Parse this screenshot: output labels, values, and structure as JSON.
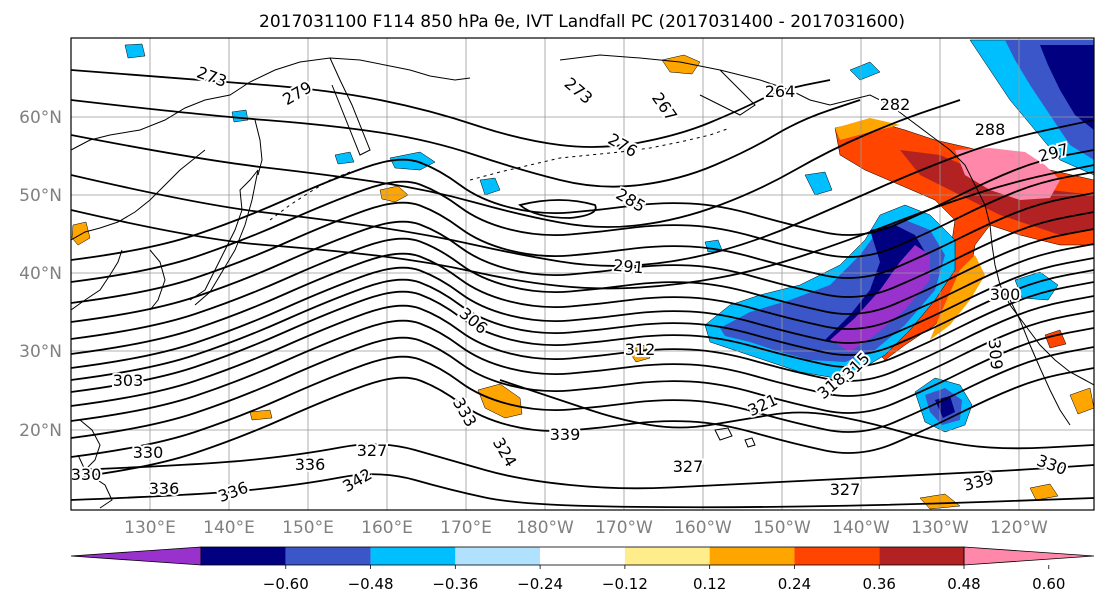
{
  "title": "2017031100 F114 850 hPa θe, IVT Landfall PC (2017031400 - 2017031600)",
  "lat_labels": [
    "60°N",
    "50°N",
    "40°N",
    "30°N",
    "20°N"
  ],
  "lon_labels": [
    "130°E",
    "140°E",
    "150°E",
    "160°E",
    "170°E",
    "180°W",
    "170°W",
    "160°W",
    "150°W",
    "140°W",
    "130°W",
    "120°W"
  ],
  "colorbar": {
    "ticks": [
      "−0.60",
      "−0.48",
      "−0.36",
      "−0.24",
      "−0.12",
      "0.12",
      "0.24",
      "0.36",
      "0.48",
      "0.60"
    ],
    "colors": [
      "#9932CC",
      "#000080",
      "#3A56C8",
      "#00BFFF",
      "#B0E2FF",
      "#FFFFFF",
      "#FFEC8B",
      "#FFA500",
      "#FF4500",
      "#B22222",
      "#FF88AA"
    ]
  },
  "contour_labels": [
    "273",
    "279",
    "273",
    "267",
    "264",
    "282",
    "288",
    "297",
    "276",
    "285",
    "291",
    "306",
    "312",
    "303",
    "327",
    "330",
    "333",
    "324",
    "321",
    "318",
    "315",
    "309",
    "300",
    "336",
    "339",
    "342",
    "327",
    "330",
    "336",
    "339",
    "327",
    "336",
    "330"
  ],
  "anomaly_colors": {
    "purple": "#9932CC",
    "navy": "#000080",
    "blue": "#3A56C8",
    "sky": "#00BFFF",
    "lightblue": "#B0E2FF",
    "yellow": "#FFEC8B",
    "orange": "#FFA500",
    "redorange": "#FF4500",
    "firebrick": "#B22222",
    "pink": "#FF88AA"
  }
}
